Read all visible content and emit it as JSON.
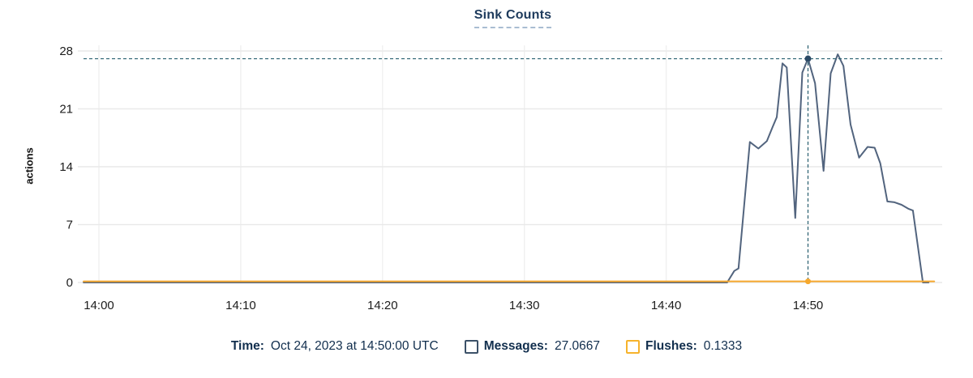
{
  "title": "Sink Counts",
  "colors": {
    "messages_line": "#52647e",
    "messages_swatch": "#3c5168",
    "flushes_line": "#f6a82d",
    "flushes_swatch": "#f6b32c",
    "crosshair": "#2b6272",
    "crosshair_dot": "#2c4a66",
    "title_text": "#1d3a5c",
    "legend_text": "#122f4e",
    "tick_text": "#1c1c1c",
    "grid_h": "#e9e9e9",
    "grid_v": "#f0f0f0",
    "title_underline": "#a9bdd2"
  },
  "tooltip": {
    "time_label": "Time:",
    "time_value": "Oct 24, 2023 at 14:50:00 UTC",
    "messages_label": "Messages:",
    "messages_value": "27.0667",
    "flushes_label": "Flushes:",
    "flushes_value": "0.1333"
  },
  "chart_data": {
    "type": "line",
    "title": "Sink Counts",
    "xlabel": "",
    "ylabel": "actions",
    "ylim": [
      0,
      28
    ],
    "yticks": [
      0,
      7,
      14,
      21,
      28
    ],
    "x_unit": "minutes after 14:00 UTC, Oct 24 2023",
    "xticks": [
      {
        "label": "14:00",
        "t": 0
      },
      {
        "label": "14:10",
        "t": 10
      },
      {
        "label": "14:20",
        "t": 20
      },
      {
        "label": "14:30",
        "t": 30
      },
      {
        "label": "14:40",
        "t": 40
      },
      {
        "label": "14:50",
        "t": 50
      }
    ],
    "grid": true,
    "legend_position": "bottom",
    "series": [
      {
        "name": "Messages",
        "color": "#52647e",
        "points": [
          [
            -1.08,
            0
          ],
          [
            44.3,
            0
          ],
          [
            44.8,
            1.4
          ],
          [
            45.1,
            1.7
          ],
          [
            45.9,
            17.0
          ],
          [
            46.5,
            16.2
          ],
          [
            47.1,
            17.1
          ],
          [
            47.5,
            18.8
          ],
          [
            47.8,
            20.0
          ],
          [
            48.2,
            26.5
          ],
          [
            48.5,
            26.0
          ],
          [
            49.1,
            7.8
          ],
          [
            49.6,
            25.4
          ],
          [
            50.0,
            27.0667
          ],
          [
            50.5,
            24.1
          ],
          [
            51.1,
            13.5
          ],
          [
            51.6,
            25.3
          ],
          [
            52.1,
            27.6
          ],
          [
            52.5,
            26.2
          ],
          [
            53.0,
            19.1
          ],
          [
            53.6,
            15.1
          ],
          [
            54.2,
            16.4
          ],
          [
            54.7,
            16.3
          ],
          [
            55.1,
            14.4
          ],
          [
            55.6,
            9.8
          ],
          [
            56.1,
            9.7
          ],
          [
            56.6,
            9.4
          ],
          [
            57.1,
            8.9
          ],
          [
            57.4,
            8.7
          ],
          [
            58.1,
            0
          ],
          [
            58.5,
            0
          ]
        ]
      },
      {
        "name": "Flushes",
        "color": "#f6a82d",
        "points": [
          [
            -1.08,
            0.1333
          ],
          [
            58.9,
            0.1333
          ]
        ]
      }
    ],
    "crosshair": {
      "t": 50,
      "time": "Oct 24, 2023 at 14:50:00 UTC",
      "messages_value": 27.0667,
      "flushes_value": 0.1333
    }
  }
}
